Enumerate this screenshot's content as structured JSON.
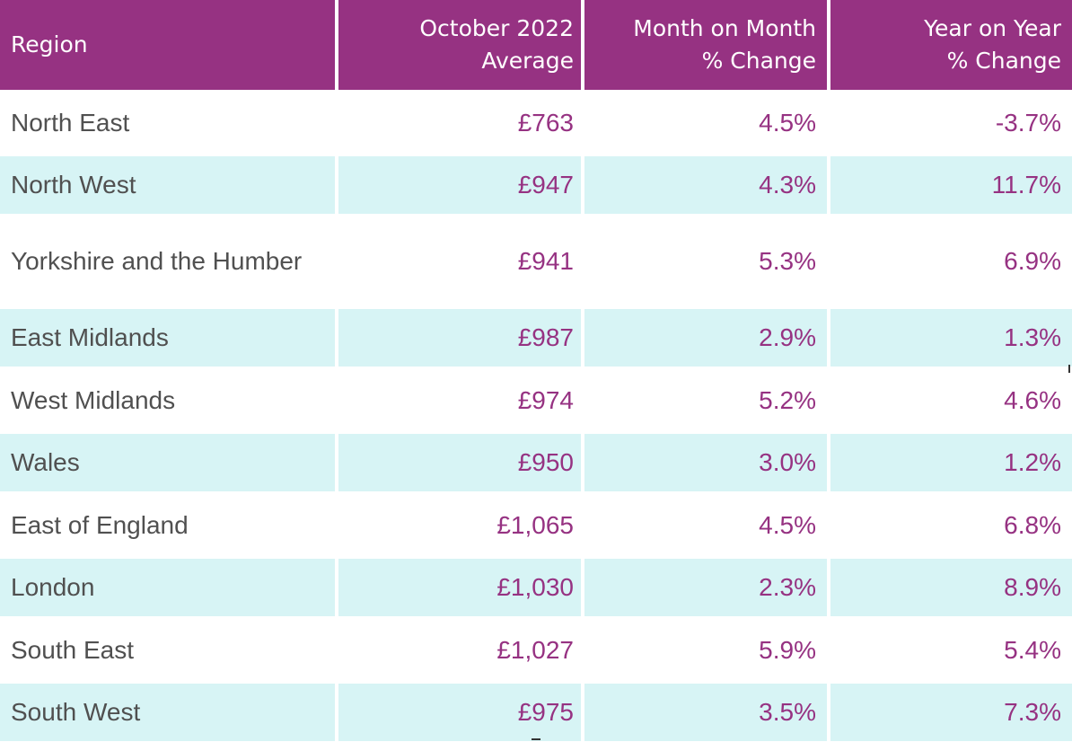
{
  "chart_data": {
    "type": "table",
    "columns": [
      "Region",
      "October 2022 Average",
      "Month on Month % Change",
      "Year on Year % Change"
    ],
    "header_lines": [
      [
        "Region"
      ],
      [
        "October 2022",
        "Average"
      ],
      [
        "Month on Month",
        "% Change"
      ],
      [
        "Year on Year",
        "% Change"
      ]
    ],
    "rows": [
      [
        "North East",
        "£763",
        "4.5%",
        "-3.7%"
      ],
      [
        "North West",
        "£947",
        "4.3%",
        "11.7%"
      ],
      [
        "Yorkshire and the Humber",
        "£941",
        "5.3%",
        "6.9%"
      ],
      [
        "East Midlands",
        "£987",
        "2.9%",
        "1.3%"
      ],
      [
        "West Midlands",
        "£974",
        "5.2%",
        "4.6%"
      ],
      [
        "Wales",
        "£950",
        "3.0%",
        "1.2%"
      ],
      [
        "East of England",
        "£1,065",
        "4.5%",
        "6.8%"
      ],
      [
        "London",
        "£1,030",
        "2.3%",
        "8.9%"
      ],
      [
        "South East",
        "£1,027",
        "5.9%",
        "5.4%"
      ],
      [
        "South West",
        "£975",
        "3.5%",
        "7.3%"
      ]
    ],
    "values": {
      "october_2022_average": [
        763,
        947,
        941,
        987,
        974,
        950,
        1065,
        1030,
        1027,
        975
      ],
      "month_on_month_pct": [
        4.5,
        4.3,
        5.3,
        2.9,
        5.2,
        3.0,
        4.5,
        2.3,
        5.9,
        3.5
      ],
      "year_on_year_pct": [
        -3.7,
        11.7,
        6.9,
        1.3,
        4.6,
        1.2,
        6.8,
        8.9,
        5.4,
        7.3
      ]
    }
  },
  "colors": {
    "header_bg": "#963282",
    "header_text": "#ffffff",
    "value_text": "#963282",
    "region_text": "#505050",
    "stripe_bg": "#d7f4f5"
  }
}
